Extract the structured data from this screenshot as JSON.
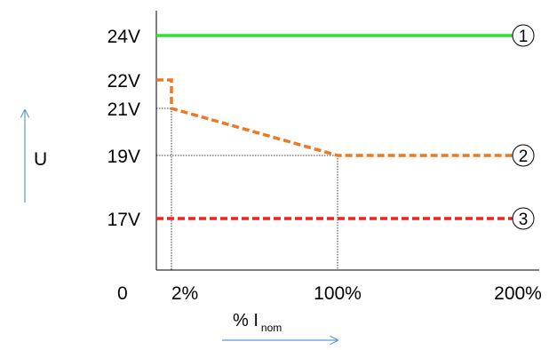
{
  "chart_data": {
    "type": "line",
    "ylabel": "U",
    "xlabel": {
      "main": "% I",
      "subscript": "nom"
    },
    "origin_label": "0",
    "y_ticks": [
      {
        "label": "24V",
        "value": 24
      },
      {
        "label": "22V",
        "value": 22
      },
      {
        "label": "21V",
        "value": 21
      },
      {
        "label": "19V",
        "value": 19
      },
      {
        "label": "17V",
        "value": 17
      }
    ],
    "x_ticks": [
      {
        "label": "2%",
        "value": 2
      },
      {
        "label": "100%",
        "value": 100
      },
      {
        "label": "200%",
        "value": 200
      }
    ],
    "series": [
      {
        "marker": "1",
        "color": "#33dd33",
        "dashed": false,
        "points": [
          [
            0,
            24
          ],
          [
            200,
            24
          ]
        ]
      },
      {
        "marker": "2",
        "color": "#ee7722",
        "dashed": true,
        "points": [
          [
            0,
            22
          ],
          [
            2,
            22
          ],
          [
            2,
            21
          ],
          [
            100,
            19
          ],
          [
            200,
            19
          ]
        ]
      },
      {
        "marker": "3",
        "color": "#ee2222",
        "dashed": true,
        "points": [
          [
            0,
            17
          ],
          [
            200,
            17
          ]
        ]
      }
    ],
    "guides": [
      [
        2,
        21
      ],
      [
        100,
        19
      ]
    ]
  }
}
